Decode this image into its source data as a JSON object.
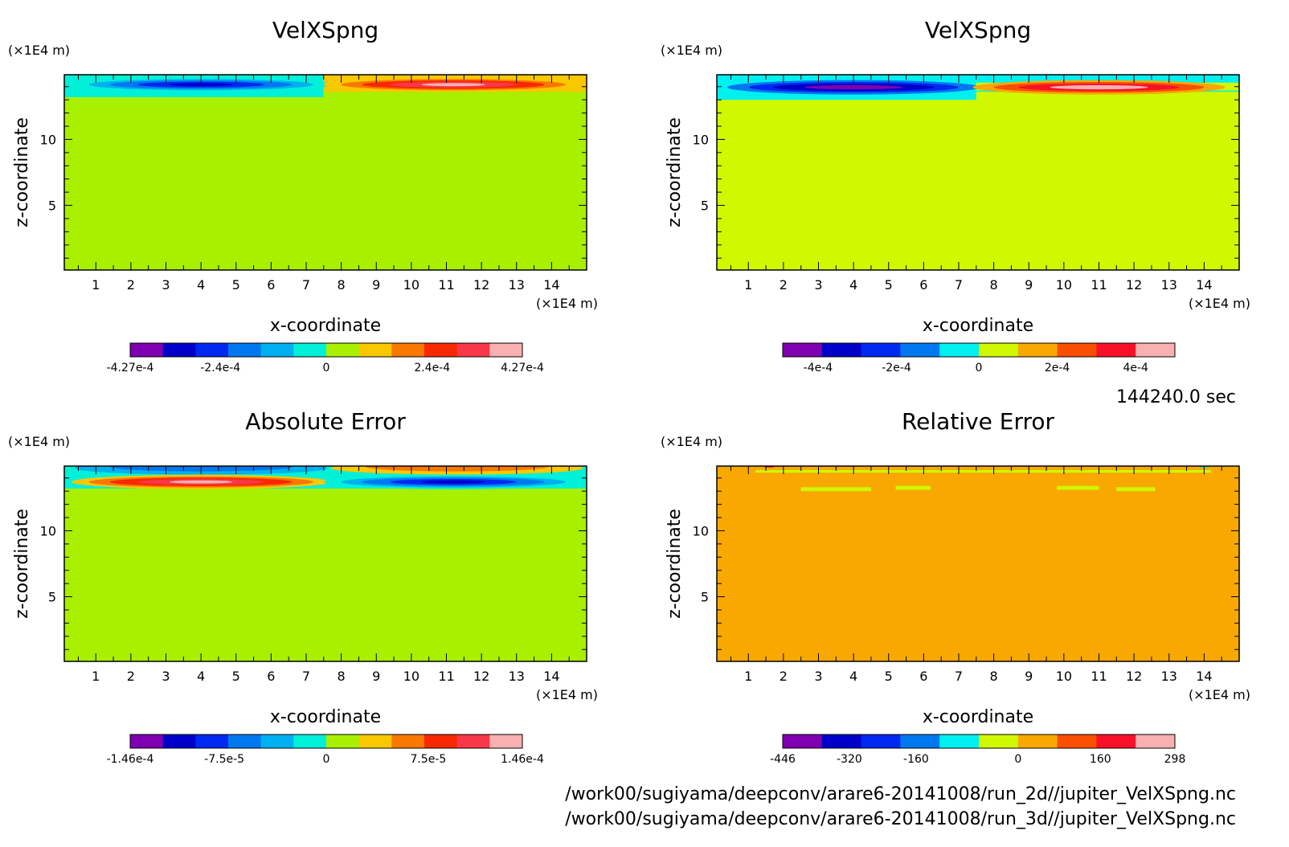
{
  "time_label": "144240.0 sec",
  "file_paths": [
    "/work00/sugiyama/deepconv/arare6-20141008/run_2d//jupiter_VelXSpng.nc",
    "/work00/sugiyama/deepconv/arare6-20141008/run_3d//jupiter_VelXSpng.nc"
  ],
  "chart_data": [
    {
      "type": "heatmap",
      "title": "VelXSpng",
      "xlabel": "x-coordinate",
      "ylabel": "z-coordinate",
      "x_unit": "(×1E4 m)",
      "y_unit": "(×1E4 m)",
      "xlim": [
        0.1,
        15.0
      ],
      "ylim": [
        0.1,
        14.9
      ],
      "xticks": [
        1,
        2,
        3,
        4,
        5,
        6,
        7,
        8,
        9,
        10,
        11,
        12,
        13,
        14
      ],
      "yticks": [
        5,
        10
      ],
      "background_color": "#a8f000",
      "colorbar": {
        "colors": [
          "#7f00b0",
          "#0000c8",
          "#0028f0",
          "#0078f0",
          "#00b0f0",
          "#00f0d8",
          "#a8f000",
          "#f8c800",
          "#f87800",
          "#f82800",
          "#f83848",
          "#f8b0b0"
        ],
        "tick_labels": [
          "-4.27e-4",
          "-2.4e-4",
          "0",
          "2.4e-4",
          "4.27e-4"
        ]
      }
    },
    {
      "type": "heatmap",
      "title": "VelXSpng",
      "xlabel": "x-coordinate",
      "ylabel": "z-coordinate",
      "x_unit": "(×1E4 m)",
      "y_unit": "(×1E4 m)",
      "xlim": [
        0.1,
        15.0
      ],
      "ylim": [
        0.1,
        14.9
      ],
      "xticks": [
        1,
        2,
        3,
        4,
        5,
        6,
        7,
        8,
        9,
        10,
        11,
        12,
        13,
        14
      ],
      "yticks": [
        5,
        10
      ],
      "background_color": "#d0f800",
      "colorbar": {
        "colors": [
          "#7f00b0",
          "#0000c8",
          "#0028f0",
          "#0078f0",
          "#00f0f0",
          "#d0f800",
          "#f8a800",
          "#f85000",
          "#f81028",
          "#f8b0b0"
        ],
        "tick_labels": [
          "-4e-4",
          "-2e-4",
          "0",
          "2e-4",
          "4e-4"
        ]
      }
    },
    {
      "type": "heatmap",
      "title": "Absolute Error",
      "xlabel": "x-coordinate",
      "ylabel": "z-coordinate",
      "x_unit": "(×1E4 m)",
      "y_unit": "(×1E4 m)",
      "xlim": [
        0.1,
        15.0
      ],
      "ylim": [
        0.1,
        14.9
      ],
      "xticks": [
        1,
        2,
        3,
        4,
        5,
        6,
        7,
        8,
        9,
        10,
        11,
        12,
        13,
        14
      ],
      "yticks": [
        5,
        10
      ],
      "background_color": "#a8f000",
      "colorbar": {
        "colors": [
          "#7f00b0",
          "#0000c8",
          "#0028f0",
          "#0078f0",
          "#00b0f0",
          "#00f0d8",
          "#a8f000",
          "#f8c800",
          "#f87800",
          "#f82800",
          "#f83848",
          "#f8b0b0"
        ],
        "tick_labels": [
          "-1.46e-4",
          "-7.5e-5",
          "0",
          "7.5e-5",
          "1.46e-4"
        ]
      }
    },
    {
      "type": "heatmap",
      "title": "Relative Error",
      "xlabel": "x-coordinate",
      "ylabel": "z-coordinate",
      "x_unit": "(×1E4 m)",
      "y_unit": "(×1E4 m)",
      "xlim": [
        0.1,
        15.0
      ],
      "ylim": [
        0.1,
        14.9
      ],
      "xticks": [
        1,
        2,
        3,
        4,
        5,
        6,
        7,
        8,
        9,
        10,
        11,
        12,
        13,
        14
      ],
      "yticks": [
        5,
        10
      ],
      "background_color": "#f8a800",
      "colorbar": {
        "colors": [
          "#7f00b0",
          "#0000c8",
          "#0028f0",
          "#0078f0",
          "#00f0f0",
          "#d0f800",
          "#f8a800",
          "#f85000",
          "#f81028",
          "#f8b0b0"
        ],
        "tick_labels": [
          "-446",
          "-320",
          "-160",
          "0",
          "160",
          "298"
        ]
      }
    }
  ]
}
